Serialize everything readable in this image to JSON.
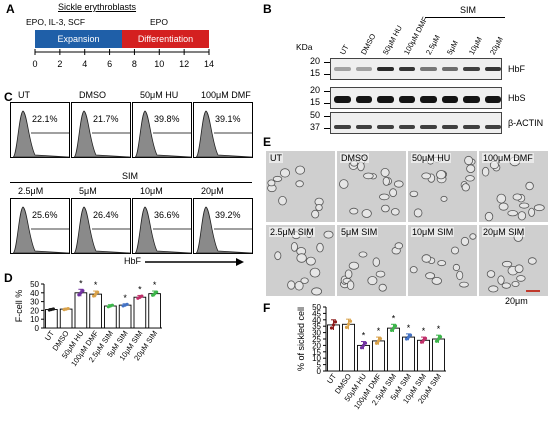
{
  "panels": {
    "A": {
      "letter": "A",
      "title": "Sickle erythroblasts",
      "left_factors": "EPO, IL-3, SCF",
      "right_factors": "EPO",
      "phase1": "Expansion",
      "phase2": "Differentiation",
      "ticks": [
        "0",
        "2",
        "4",
        "6",
        "8",
        "10",
        "12",
        "14"
      ],
      "phase1_color": "#1f5fa8",
      "phase2_color": "#d42020"
    },
    "B": {
      "letter": "B",
      "kda_label": "KDa",
      "lanes": [
        "UT",
        "DMSO",
        "50μM HU",
        "100μM DMF",
        "2.5μM",
        "5μM",
        "10μM",
        "20μM"
      ],
      "sim_label": "SIM",
      "blots": [
        {
          "name": "HbF",
          "markers": [
            "20",
            "15"
          ]
        },
        {
          "name": "HbS",
          "markers": [
            "20",
            "15"
          ]
        },
        {
          "name": "β-ACTIN",
          "markers": [
            "50",
            "37"
          ]
        }
      ]
    },
    "C": {
      "letter": "C",
      "row1": [
        {
          "label": "UT",
          "pct": "22.1%"
        },
        {
          "label": "DMSO",
          "pct": "21.7%"
        },
        {
          "label": "50μM HU",
          "pct": "39.8%"
        },
        {
          "label": "100μM DMF",
          "pct": "39.1%"
        }
      ],
      "sim_label": "SIM",
      "row2": [
        {
          "label": "2.5μM",
          "pct": "25.6%"
        },
        {
          "label": "5μM",
          "pct": "26.4%"
        },
        {
          "label": "10μM",
          "pct": "36.6%"
        },
        {
          "label": "20μM",
          "pct": "39.2%"
        }
      ],
      "axis_label": "HbF"
    },
    "D": {
      "letter": "D"
    },
    "E": {
      "letter": "E",
      "row1": [
        "UT",
        "DMSO",
        "50μM HU",
        "100μM DMF"
      ],
      "row2": [
        "2.5μM SIM",
        "5μM SIM",
        "10μM SIM",
        "20μM SIM"
      ],
      "scale": "20μm"
    },
    "F": {
      "letter": "F"
    }
  },
  "chart_data": [
    {
      "type": "bar",
      "panel": "D",
      "ylabel": "F-cell %",
      "ylim": [
        0,
        50
      ],
      "yticks": [
        0,
        10,
        20,
        30,
        40,
        50
      ],
      "categories": [
        "UT",
        "DMSO",
        "50μM HU",
        "100μM DMF",
        "2.5μM SIM",
        "5μM SIM",
        "10μM SIM",
        "20μM SIM"
      ],
      "values": [
        21,
        21.5,
        40,
        38.5,
        25,
        26,
        35,
        39
      ],
      "errors": [
        1,
        1,
        4,
        3.5,
        1.5,
        1.5,
        2,
        3
      ],
      "significant": [
        false,
        false,
        true,
        true,
        false,
        true,
        true,
        true
      ],
      "colors": [
        "#1a1a1a",
        "#d9a24a",
        "#7030a0",
        "#d9a24a",
        "#3cb54a",
        "#4472c4",
        "#c0306a",
        "#3cb54a"
      ]
    },
    {
      "type": "bar",
      "panel": "F",
      "ylabel": "% of sickled cell",
      "ylim": [
        0,
        50
      ],
      "yticks": [
        0,
        5,
        10,
        15,
        20,
        25,
        30,
        35,
        40,
        45,
        50
      ],
      "categories": [
        "UT",
        "DMSO",
        "50μM HU",
        "100μM DMF",
        "2.5μM SIM",
        "5μM SIM",
        "10μM SIM",
        "20μM SIM"
      ],
      "values": [
        36,
        36.5,
        20,
        23.5,
        33.5,
        26.5,
        24,
        25
      ],
      "errors": [
        4,
        4,
        3,
        3,
        3,
        2.5,
        2.5,
        3
      ],
      "significant": [
        false,
        false,
        true,
        true,
        true,
        true,
        true,
        true
      ],
      "colors": [
        "#8b1a1a",
        "#d9a24a",
        "#7030a0",
        "#d9a24a",
        "#3cb54a",
        "#4472c4",
        "#c0306a",
        "#3cb54a"
      ]
    }
  ]
}
